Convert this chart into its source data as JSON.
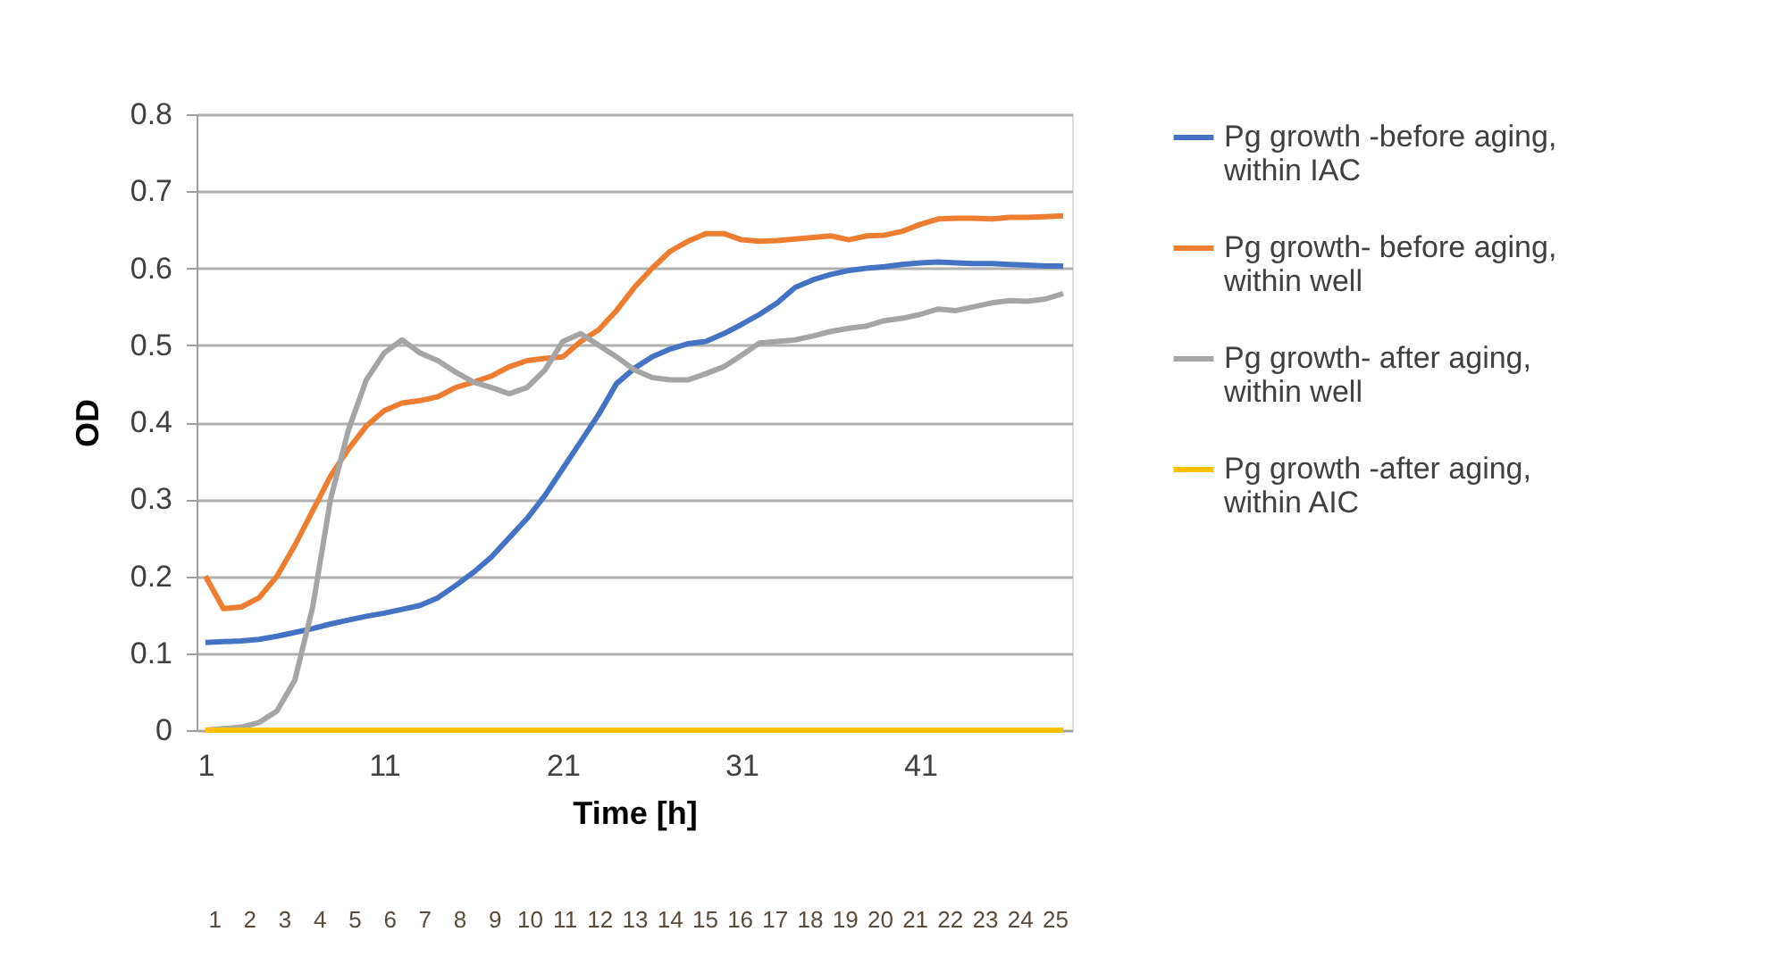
{
  "chart_data": {
    "type": "line",
    "xlabel": "Time [h]",
    "ylabel": "OD",
    "x": [
      1,
      2,
      3,
      4,
      5,
      6,
      7,
      8,
      9,
      10,
      11,
      12,
      13,
      14,
      15,
      16,
      17,
      18,
      19,
      20,
      21,
      22,
      23,
      24,
      25,
      26,
      27,
      28,
      29,
      30,
      31,
      32,
      33,
      34,
      35,
      36,
      37,
      38,
      39,
      40,
      41,
      42,
      43,
      44,
      45,
      46,
      47,
      48,
      49
    ],
    "series": [
      {
        "name": "Pg growth -before aging, within IAC",
        "color": "#4472c4",
        "values": [
          0.114,
          0.115,
          0.116,
          0.118,
          0.122,
          0.127,
          0.132,
          0.138,
          0.143,
          0.148,
          0.152,
          0.157,
          0.162,
          0.172,
          0.188,
          0.205,
          0.225,
          0.25,
          0.275,
          0.305,
          0.34,
          0.375,
          0.41,
          0.45,
          0.47,
          0.485,
          0.495,
          0.502,
          0.505,
          0.515,
          0.527,
          0.54,
          0.555,
          0.575,
          0.585,
          0.592,
          0.597,
          0.6,
          0.602,
          0.605,
          0.607,
          0.608,
          0.607,
          0.606,
          0.606,
          0.605,
          0.604,
          0.603,
          0.603
        ]
      },
      {
        "name": "Pg growth- before aging, within well",
        "color": "#ed7d31",
        "values": [
          0.2,
          0.158,
          0.16,
          0.172,
          0.2,
          0.24,
          0.285,
          0.33,
          0.365,
          0.395,
          0.415,
          0.425,
          0.428,
          0.433,
          0.445,
          0.452,
          0.46,
          0.472,
          0.48,
          0.483,
          0.485,
          0.505,
          0.52,
          0.545,
          0.575,
          0.6,
          0.622,
          0.635,
          0.645,
          0.645,
          0.637,
          0.635,
          0.636,
          0.638,
          0.64,
          0.642,
          0.637,
          0.642,
          0.643,
          0.648,
          0.657,
          0.664,
          0.665,
          0.665,
          0.664,
          0.666,
          0.666,
          0.667,
          0.668
        ]
      },
      {
        "name": "Pg growth- after aging, within well",
        "color": "#a5a5a5",
        "values": [
          0.0,
          0.002,
          0.004,
          0.01,
          0.025,
          0.065,
          0.16,
          0.3,
          0.39,
          0.455,
          0.49,
          0.507,
          0.49,
          0.48,
          0.465,
          0.452,
          0.445,
          0.437,
          0.445,
          0.468,
          0.505,
          0.515,
          0.5,
          0.485,
          0.468,
          0.458,
          0.455,
          0.455,
          0.463,
          0.472,
          0.487,
          0.503,
          0.505,
          0.507,
          0.512,
          0.518,
          0.522,
          0.525,
          0.532,
          0.535,
          0.54,
          0.547,
          0.545,
          0.55,
          0.555,
          0.558,
          0.557,
          0.56,
          0.567
        ]
      },
      {
        "name": "Pg growth -after aging, within AIC",
        "color": "#ffc000",
        "values": [
          0,
          0,
          0,
          0,
          0,
          0,
          0,
          0,
          0,
          0,
          0,
          0,
          0,
          0,
          0,
          0,
          0,
          0,
          0,
          0,
          0,
          0,
          0,
          0,
          0,
          0,
          0,
          0,
          0,
          0,
          0,
          0,
          0,
          0,
          0,
          0,
          0,
          0,
          0,
          0,
          0,
          0,
          0,
          0,
          0,
          0,
          0,
          0,
          0
        ]
      }
    ],
    "xlim": [
      0.5,
      49.5
    ],
    "xticks": [
      1,
      11,
      21,
      31,
      41
    ],
    "ylim": [
      0,
      0.8
    ],
    "yticks": [
      0,
      0.1,
      0.2,
      0.3,
      0.4,
      0.5,
      0.6,
      0.7,
      0.8
    ],
    "x2lim": [
      0.5,
      25.5
    ],
    "x2ticks": [
      1,
      2,
      3,
      4,
      5,
      6,
      7,
      8,
      9,
      10,
      11,
      12,
      13,
      14,
      15,
      16,
      17,
      18,
      19,
      20,
      21,
      22,
      23,
      24,
      25
    ],
    "grid": "y",
    "legend": "right",
    "marker": "none",
    "line_style": "solid"
  }
}
